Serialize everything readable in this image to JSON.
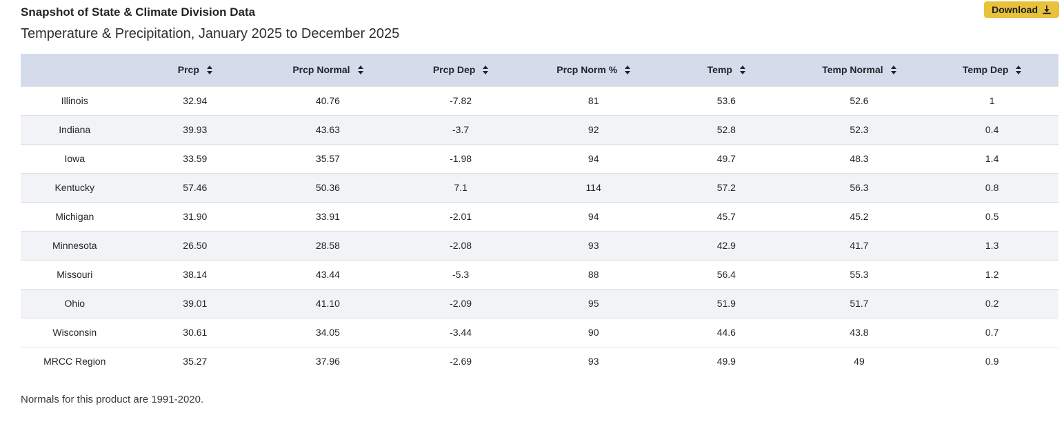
{
  "page": {
    "title": "Snapshot of State & Climate Division Data",
    "subtitle": "Temperature & Precipitation, January 2025 to December 2025",
    "download_label": "Download",
    "footnote": "Normals for this product are 1991-2020."
  },
  "table": {
    "columns": [
      "Prcp",
      "Prcp Normal",
      "Prcp Dep",
      "Prcp Norm %",
      "Temp",
      "Temp Normal",
      "Temp Dep"
    ],
    "rows": [
      {
        "name": "Illinois",
        "values": [
          "32.94",
          "40.76",
          "-7.82",
          "81",
          "53.6",
          "52.6",
          "1"
        ]
      },
      {
        "name": "Indiana",
        "values": [
          "39.93",
          "43.63",
          "-3.7",
          "92",
          "52.8",
          "52.3",
          "0.4"
        ]
      },
      {
        "name": "Iowa",
        "values": [
          "33.59",
          "35.57",
          "-1.98",
          "94",
          "49.7",
          "48.3",
          "1.4"
        ]
      },
      {
        "name": "Kentucky",
        "values": [
          "57.46",
          "50.36",
          "7.1",
          "114",
          "57.2",
          "56.3",
          "0.8"
        ]
      },
      {
        "name": "Michigan",
        "values": [
          "31.90",
          "33.91",
          "-2.01",
          "94",
          "45.7",
          "45.2",
          "0.5"
        ]
      },
      {
        "name": "Minnesota",
        "values": [
          "26.50",
          "28.58",
          "-2.08",
          "93",
          "42.9",
          "41.7",
          "1.3"
        ]
      },
      {
        "name": "Missouri",
        "values": [
          "38.14",
          "43.44",
          "-5.3",
          "88",
          "56.4",
          "55.3",
          "1.2"
        ]
      },
      {
        "name": "Ohio",
        "values": [
          "39.01",
          "41.10",
          "-2.09",
          "95",
          "51.9",
          "51.7",
          "0.2"
        ]
      },
      {
        "name": "Wisconsin",
        "values": [
          "30.61",
          "34.05",
          "-3.44",
          "90",
          "44.6",
          "43.8",
          "0.7"
        ]
      },
      {
        "name": "MRCC Region",
        "values": [
          "35.27",
          "37.96",
          "-2.69",
          "93",
          "49.9",
          "49",
          "0.9"
        ]
      }
    ]
  },
  "colors": {
    "header_bg": "#d4dcec",
    "stripe_bg": "#f2f3f7",
    "accent_gold": "#e9c23b",
    "row_border": "#dee2e6",
    "text": "#212529"
  }
}
